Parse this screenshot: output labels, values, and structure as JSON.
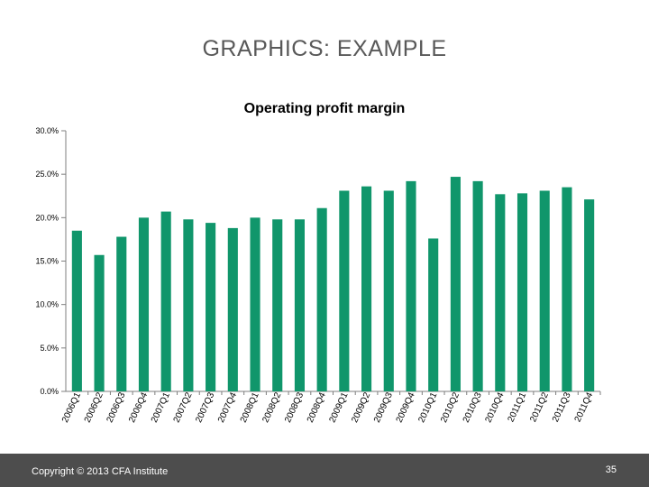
{
  "slide": {
    "title": "GRAPHICS: EXAMPLE",
    "copyright": "Copyright © 2013 CFA Institute",
    "page_number": "35"
  },
  "colors": {
    "bar": "#10966b",
    "axis": "#7f7f7f",
    "gridline": "#d9d9d9",
    "footer": "#4d4d4d"
  },
  "chart_data": {
    "type": "bar",
    "title": "Operating profit margin",
    "xlabel": "",
    "ylabel": "",
    "ylim": [
      0,
      30
    ],
    "yticks": [
      0,
      5,
      10,
      15,
      20,
      25,
      30
    ],
    "ytick_labels": [
      "0.0%",
      "5.0%",
      "10.0%",
      "15.0%",
      "20.0%",
      "25.0%",
      "30.0%"
    ],
    "grid": false,
    "legend": "none",
    "categories": [
      "2006Q1",
      "2006Q2",
      "2006Q3",
      "2006Q4",
      "2007Q1",
      "2007Q2",
      "2007Q3",
      "2007Q4",
      "2008Q1",
      "2008Q2",
      "2008Q3",
      "2008Q4",
      "2009Q1",
      "2009Q2",
      "2009Q3",
      "2009Q4",
      "2010Q1",
      "2010Q2",
      "2010Q3",
      "2010Q4",
      "2011Q1",
      "2011Q2",
      "2011Q3",
      "2011Q4"
    ],
    "values": [
      18.5,
      15.7,
      17.8,
      20.0,
      20.7,
      19.8,
      19.4,
      18.8,
      20.0,
      19.8,
      19.8,
      21.1,
      23.1,
      23.6,
      23.1,
      24.2,
      17.6,
      24.7,
      24.2,
      22.7,
      22.8,
      23.1,
      23.5,
      22.1
    ]
  }
}
